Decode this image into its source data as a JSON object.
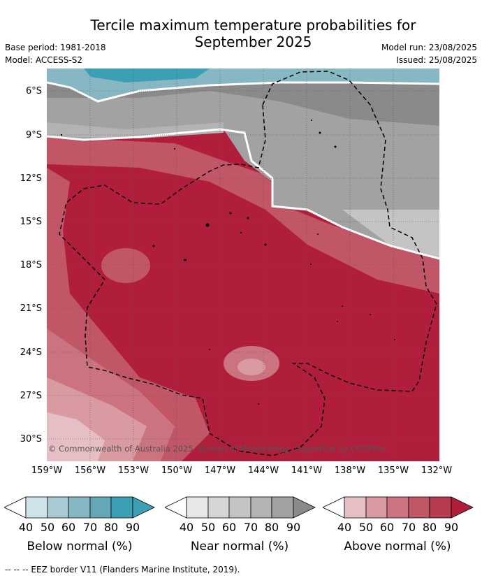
{
  "title": [
    "Tercile maximum temperature probabilities for",
    "September 2025"
  ],
  "left_meta": [
    "Base period: 1981-2018",
    "Model: ACCESS-S2"
  ],
  "right_meta": [
    "Model run: 23/08/2025",
    "Issued: 25/08/2025"
  ],
  "latitudes": [
    "6°S",
    "9°S",
    "12°S",
    "15°S",
    "18°S",
    "21°S",
    "24°S",
    "27°S",
    "30°S"
  ],
  "longitudes": [
    "159°W",
    "156°W",
    "153°W",
    "150°W",
    "147°W",
    "144°W",
    "141°W",
    "138°W",
    "135°W",
    "132°W"
  ],
  "copyright": "© Commonwealth of Australia 2025, Bureau of Meteorology, supported by COSPPac",
  "colorbars": [
    {
      "label": "Below normal (%)",
      "ticks": [
        "40",
        "50",
        "60",
        "70",
        "80",
        "90"
      ],
      "colors": [
        "#ffffff",
        "#cfe4ea",
        "#a9cbd3",
        "#87b7c3",
        "#64a8b8",
        "#3d9fb3"
      ]
    },
    {
      "label": "Near normal (%)",
      "ticks": [
        "40",
        "50",
        "60",
        "70",
        "80",
        "90"
      ],
      "colors": [
        "#ffffff",
        "#e8e8e8",
        "#d6d6d6",
        "#c4c4c4",
        "#b3b3b3",
        "#a2a2a2",
        "#8a8a8a"
      ]
    },
    {
      "label": "Above normal (%)",
      "ticks": [
        "40",
        "50",
        "60",
        "70",
        "80",
        "90"
      ],
      "colors": [
        "#ffffff",
        "#e6bfc4",
        "#d99aa2",
        "#cb7480",
        "#c05666",
        "#b53b4f",
        "#b01e3c"
      ]
    }
  ],
  "footer": "--  --  -- EEZ border V11 (Flanders Marine Institute, 2019)."
}
